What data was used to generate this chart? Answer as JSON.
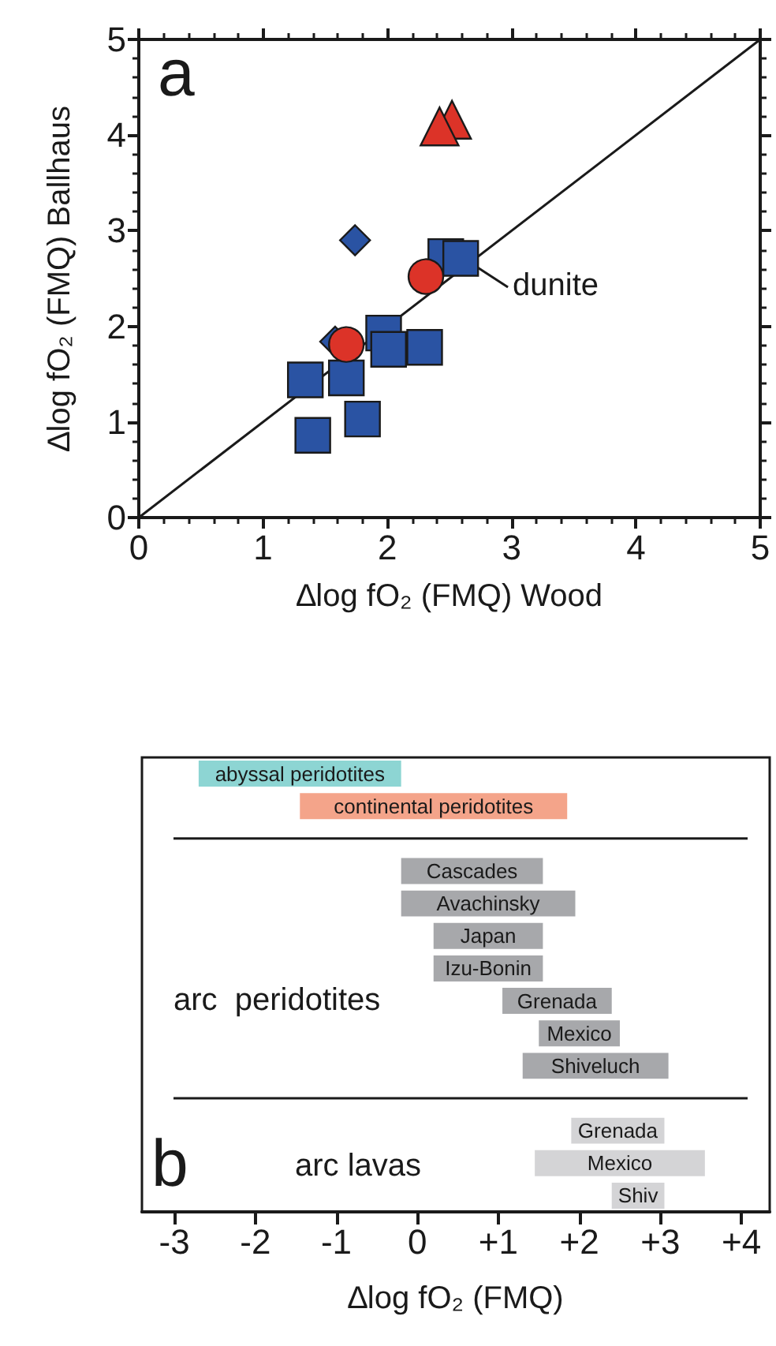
{
  "chart_data": [
    {
      "type": "scatter",
      "xlabel": "∆log fO₂ (FMQ) Wood",
      "ylabel": "∆log fO₂ (FMQ) Ballhaus",
      "xlim": [
        0,
        5
      ],
      "ylim": [
        0,
        5
      ],
      "xticks": [
        0,
        1,
        2,
        3,
        4,
        5
      ],
      "yticks": [
        0,
        1,
        2,
        3,
        4,
        5
      ],
      "grid": false,
      "annotations": [
        "a",
        {
          "text": "dunite",
          "x": 2.59,
          "y": 2.71
        }
      ],
      "series": [
        {
          "type": "line",
          "color": "#1a1a1a",
          "marker": "none",
          "x": [
            0,
            5
          ],
          "values": [
            0,
            5
          ]
        },
        {
          "type": "scatter",
          "color": "#2a53a3",
          "marker": "square",
          "x": [
            1.4,
            1.8,
            1.34,
            1.67,
            1.97,
            2.01,
            2.3,
            2.47,
            2.59
          ],
          "values": [
            0.86,
            1.03,
            1.44,
            1.46,
            1.93,
            1.76,
            1.78,
            2.73,
            2.71
          ]
        },
        {
          "type": "scatter",
          "color": "#2a53a3",
          "marker": "diamond",
          "x": [
            1.74,
            1.58
          ],
          "values": [
            2.9,
            1.84
          ]
        },
        {
          "type": "scatter",
          "color": "#dc3328",
          "marker": "circle",
          "x": [
            2.31,
            1.67
          ],
          "values": [
            2.52,
            1.81
          ]
        },
        {
          "type": "scatter",
          "color": "#dc3328",
          "marker": "triangle",
          "x": [
            2.52,
            2.42
          ],
          "values": [
            4.16,
            4.09
          ]
        }
      ]
    },
    {
      "type": "bar",
      "orientation": "horizontal",
      "xlabel": "∆log fO₂ (FMQ)",
      "xlim": [
        -3.4,
        4.35
      ],
      "xticks": [
        -3,
        -2,
        -1,
        0,
        {
          "value": 1,
          "label": "+1"
        },
        {
          "value": 2,
          "label": "+2"
        },
        {
          "value": 3,
          "label": "+3"
        },
        {
          "value": 4,
          "label": "+4"
        }
      ],
      "tick_labels": "x",
      "grid": "y",
      "categories": [
        "abyssal peridotites",
        "continental peridotites",
        null,
        "Cascades",
        "Avachinsky",
        "Japan",
        "Izu-Bonin",
        "Grenada",
        "Mexico",
        "Shiveluch",
        null,
        "Grenada",
        "Mexico",
        "Shiv"
      ],
      "base": [
        -2.7,
        -1.45,
        null,
        -0.2,
        -0.2,
        0.2,
        0.2,
        1.05,
        1.5,
        1.3,
        null,
        1.9,
        1.45,
        2.4
      ],
      "values": [
        2.5,
        3.3,
        null,
        1.75,
        2.15,
        1.35,
        1.35,
        1.35,
        1.0,
        1.8,
        null,
        1.15,
        2.1,
        0.65
      ],
      "colors": [
        "#8dd5d3",
        "#f4a48a",
        null,
        "#a7a8ab",
        "#a7a8ab",
        "#a7a8ab",
        "#a7a8ab",
        "#a7a8ab",
        "#a7a8ab",
        "#a7a8ab",
        null,
        "#d4d4d6",
        "#d4d4d6",
        "#d4d4d6"
      ],
      "annotations": [
        "arc  peridotites",
        "arc lavas",
        "b"
      ]
    }
  ]
}
